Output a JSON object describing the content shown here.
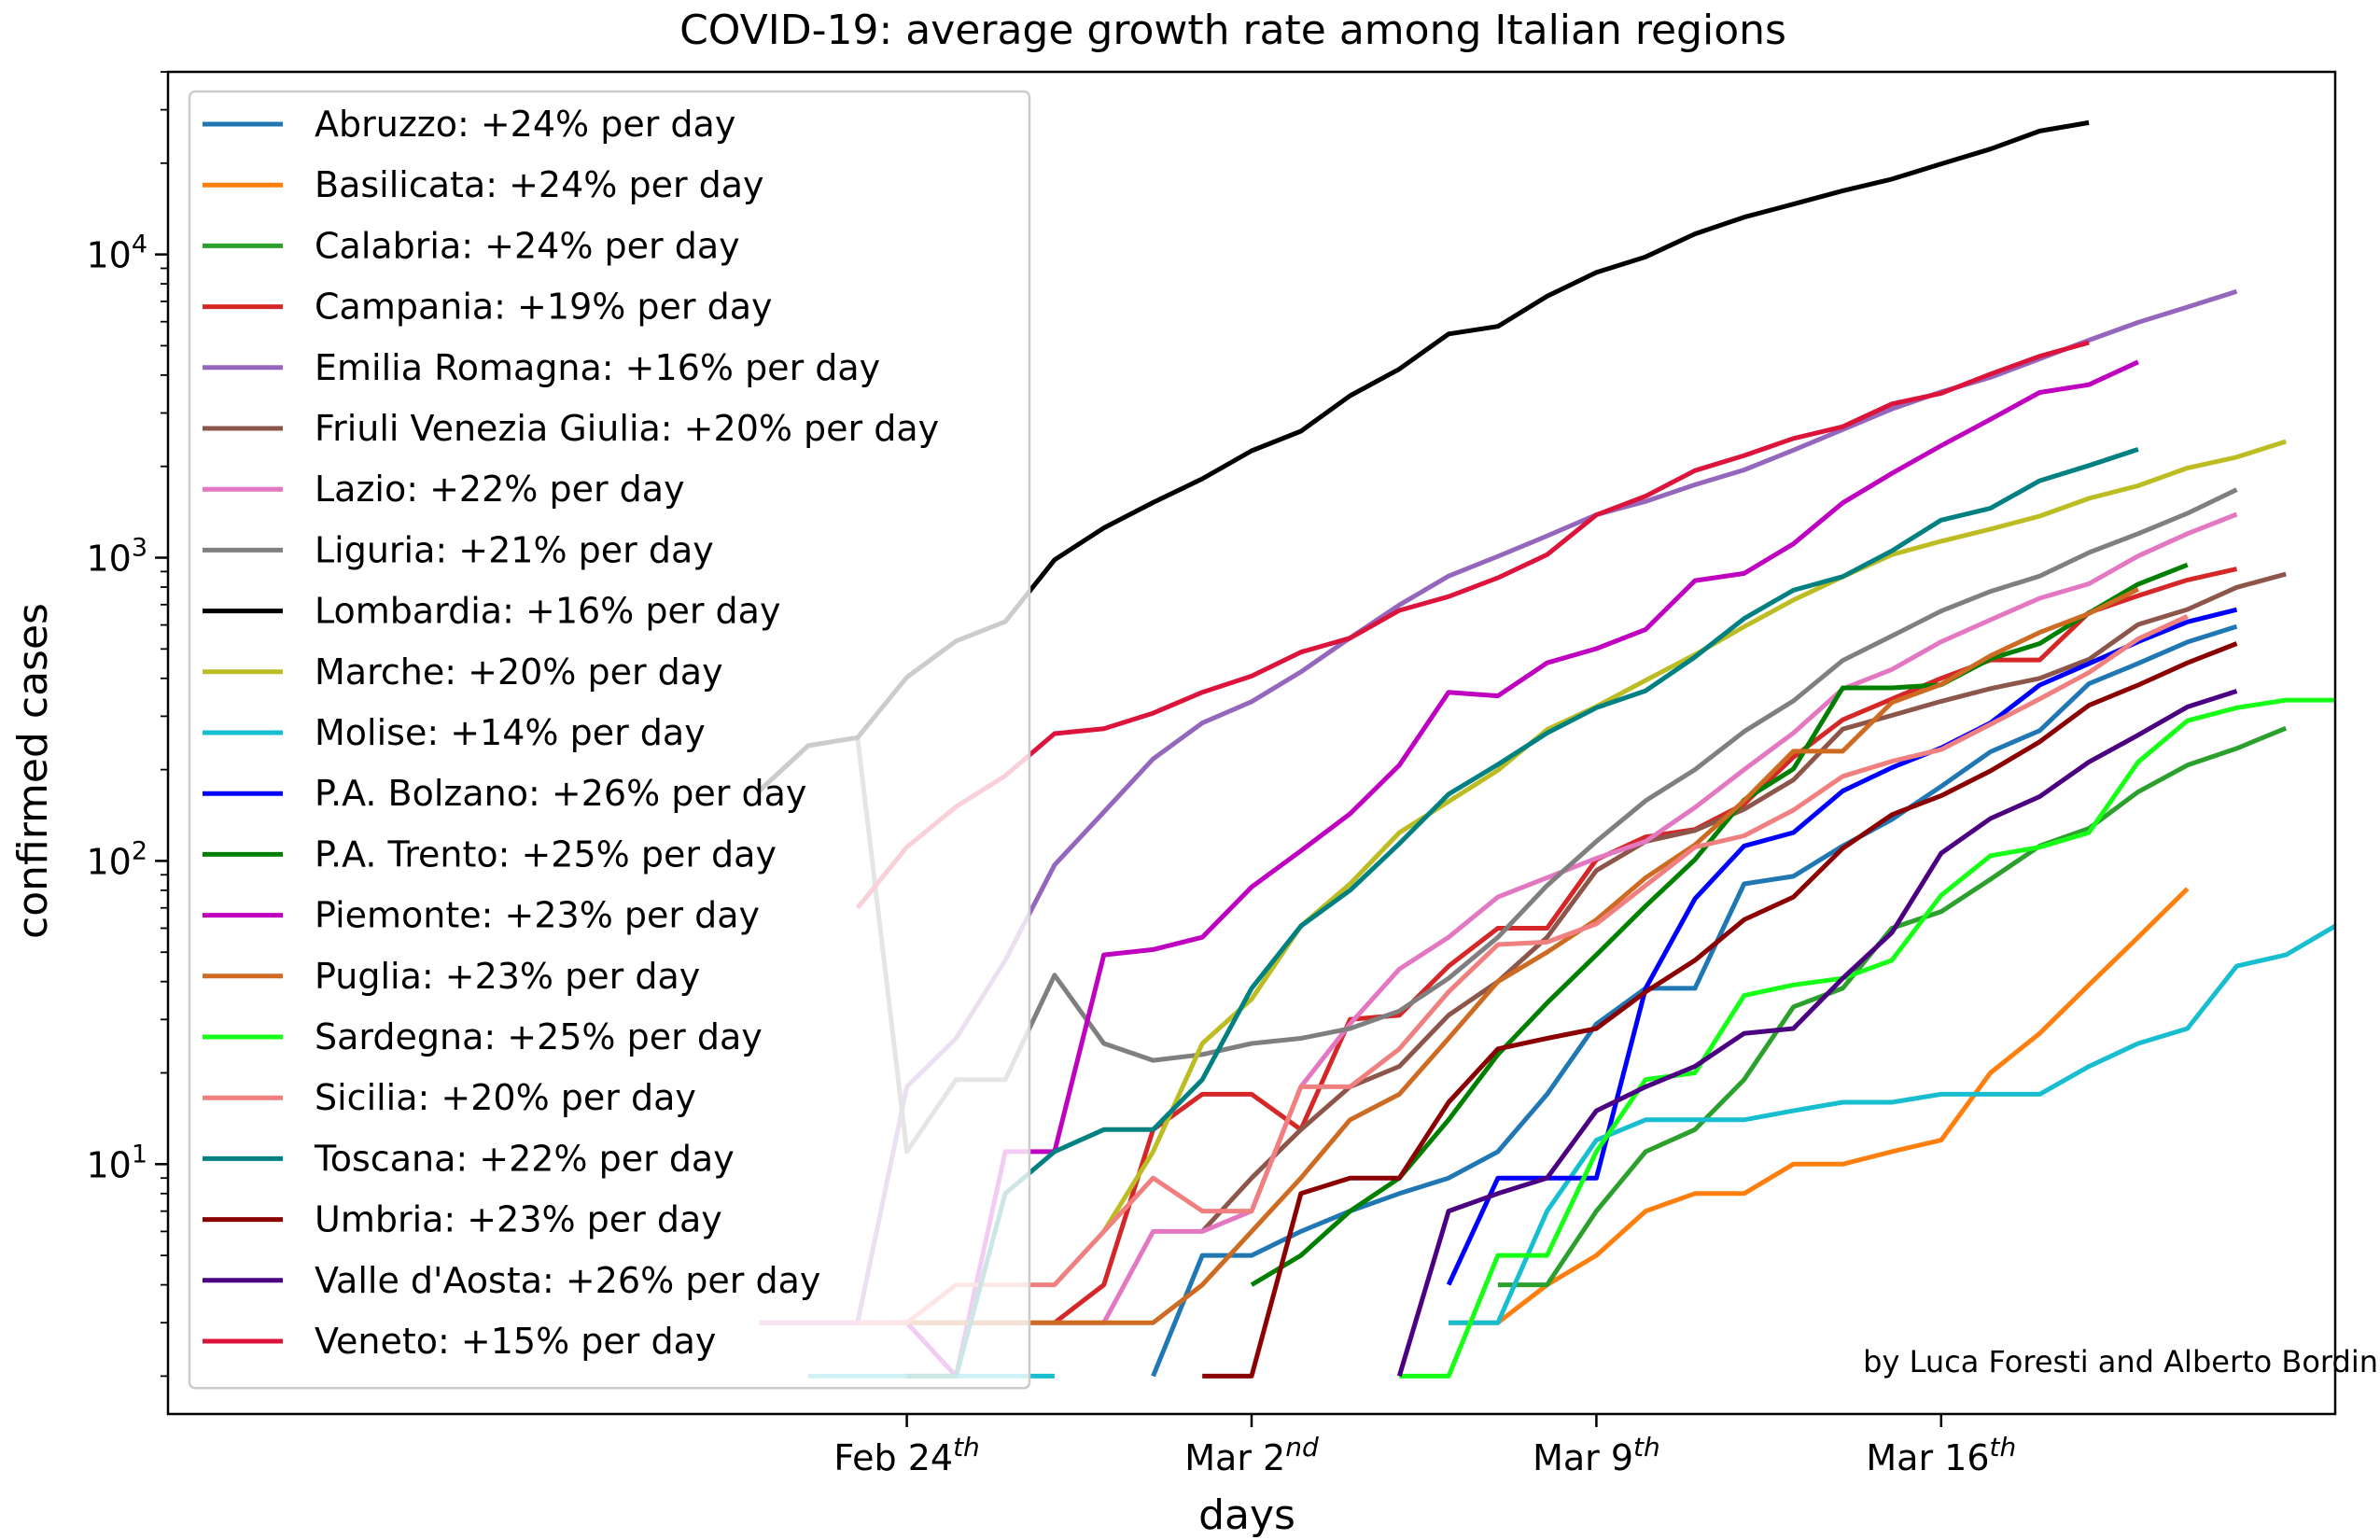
{
  "chart_data": {
    "type": "line",
    "title": "COVID-19: average growth rate among Italian regions",
    "xlabel": "days",
    "ylabel": "confirmed cases",
    "y_scale": "log",
    "ylim": [
      1.5,
      40000
    ],
    "xlim": [
      "2020-02-09",
      "2020-03-24"
    ],
    "x_ticks": [
      {
        "date": "2020-02-24",
        "label": "Feb 24",
        "sup": "th"
      },
      {
        "date": "2020-03-02",
        "label": "Mar 2",
        "sup": "nd"
      },
      {
        "date": "2020-03-09",
        "label": "Mar 9",
        "sup": "th"
      },
      {
        "date": "2020-03-16",
        "label": "Mar 16",
        "sup": "th"
      }
    ],
    "y_ticks": [
      {
        "value": 10,
        "base": "10",
        "exp": "1"
      },
      {
        "value": 100,
        "base": "10",
        "exp": "2"
      },
      {
        "value": 1000,
        "base": "10",
        "exp": "3"
      },
      {
        "value": 10000,
        "base": "10",
        "exp": "4"
      }
    ],
    "legend_position": "top-left",
    "grid": false,
    "annotation": "by Luca Foresti and Alberto Bordin",
    "series": [
      {
        "name": "Abruzzo: +24% per day",
        "color": "#1f77b4",
        "start": "2020-02-29",
        "values": [
          2,
          5,
          5,
          6,
          7,
          8,
          9,
          11,
          17,
          29,
          38,
          38,
          84,
          89,
          112,
          137,
          176,
          229,
          269,
          384,
          448,
          527,
          593
        ]
      },
      {
        "name": "Basilicata: +24% per day",
        "color": "#ff7f0e",
        "start": "2020-03-06",
        "values": [
          3,
          3,
          4,
          5,
          7,
          8,
          8,
          10,
          10,
          11,
          12,
          20,
          27,
          39,
          56,
          81
        ]
      },
      {
        "name": "Calabria: +24% per day",
        "color": "#2ca02c",
        "start": "2020-03-07",
        "values": [
          4,
          4,
          7,
          11,
          13,
          19,
          33,
          38,
          60,
          68,
          87,
          112,
          128,
          169,
          207,
          235,
          274
        ]
      },
      {
        "name": "Campania: +19% per day",
        "color": "#d62728",
        "start": "2020-02-27",
        "values": [
          3,
          4,
          13,
          17,
          17,
          13,
          30,
          31,
          45,
          60,
          60,
          101,
          120,
          127,
          154,
          220,
          292,
          342,
          400,
          460,
          460,
          659,
          749,
          844,
          918
        ]
      },
      {
        "name": "Emilia Romagna: +16% per day",
        "color": "#9467bd",
        "start": "2020-02-21",
        "values": [
          3,
          3,
          3,
          18,
          26,
          47,
          97,
          145,
          217,
          285,
          335,
          420,
          544,
          698,
          870,
          1010,
          1180,
          1386,
          1533,
          1739,
          1947,
          2263,
          2644,
          3093,
          3522,
          3931,
          4525,
          5214,
          5968,
          6705,
          7555
        ]
      },
      {
        "name": "Friuli Venezia Giulia: +20% per day",
        "color": "#8c564b",
        "start": "2020-03-01",
        "values": [
          6,
          9,
          13,
          18,
          21,
          31,
          40,
          56,
          93,
          116,
          126,
          148,
          185,
          272,
          302,
          336,
          370,
          400,
          462,
          602,
          675,
          798,
          883
        ]
      },
      {
        "name": "Lazio: +22% per day",
        "color": "#e377c2",
        "start": "2020-02-21",
        "values": [
          3,
          3,
          3,
          3,
          3,
          3,
          3,
          3,
          6,
          6,
          7,
          18,
          29,
          44,
          56,
          76,
          88,
          102,
          116,
          150,
          200,
          264,
          369,
          428,
          528,
          624,
          735,
          820,
          1013,
          1200,
          1390
        ]
      },
      {
        "name": "Liguria: +21% per day",
        "color": "#7f7f7f",
        "start": "2020-02-21",
        "values": [
          170,
          240,
          255,
          11,
          19,
          19,
          42,
          25,
          22,
          23,
          25,
          26,
          28,
          32,
          41,
          56,
          83,
          116,
          158,
          200,
          267,
          337,
          458,
          552,
          667,
          774,
          870,
          1039,
          1200,
          1400,
          1677
        ]
      },
      {
        "name": "Lombardia: +16% per day",
        "color": "#000000",
        "start": "2020-02-21",
        "values": [
          170,
          240,
          255,
          403,
          531,
          615,
          984,
          1254,
          1520,
          1820,
          2251,
          2612,
          3420,
          4189,
          5469,
          5791,
          7280,
          8725,
          9820,
          11685,
          13272,
          14649,
          16220,
          17713,
          19884,
          22264,
          25515,
          27206
        ]
      },
      {
        "name": "Marche: +20% per day",
        "color": "#bcbd22",
        "start": "2020-02-28",
        "values": [
          6,
          11,
          25,
          35,
          61,
          84,
          124,
          157,
          199,
          271,
          323,
          394,
          479,
          592,
          725,
          865,
          1023,
          1133,
          1242,
          1371,
          1568,
          1727,
          1976,
          2145,
          2417
        ]
      },
      {
        "name": "Molise: +14% per day",
        "color": "#17becf",
        "start": "2020-02-22",
        "values": [
          2,
          2,
          2,
          2,
          2,
          2,
          "gap",
          "gap",
          "gap",
          "gap",
          "gap",
          "gap",
          "gap",
          3,
          3,
          7,
          12,
          14,
          14,
          14,
          15,
          16,
          16,
          17,
          17,
          17,
          21,
          25,
          28,
          45,
          49,
          61,
          66
        ]
      },
      {
        "name": "P.A. Bolzano: +26% per day",
        "color": "#0000ff",
        "start": "2020-03-06",
        "values": [
          4,
          9,
          9,
          9,
          38,
          75,
          112,
          124,
          170,
          203,
          236,
          285,
          380,
          447,
          528,
          614,
          674
        ]
      },
      {
        "name": "P.A. Trento: +25% per day",
        "color": "#008000",
        "start": "2020-03-02",
        "values": [
          4,
          5,
          7,
          9,
          14,
          23,
          34,
          49,
          71,
          101,
          159,
          201,
          372,
          372,
          381,
          464,
          521,
          657,
          818,
          947
        ]
      },
      {
        "name": "Piemonte: +23% per day",
        "color": "#c000c0",
        "start": "2020-02-23",
        "values": [
          3,
          3,
          2,
          11,
          11,
          49,
          51,
          56,
          82,
          108,
          143,
          207,
          360,
          350,
          450,
          501,
          580,
          840,
          887,
          1111,
          1516,
          1897,
          2341,
          2858,
          3506,
          3718,
          4420
        ]
      },
      {
        "name": "Puglia: +23% per day",
        "color": "#cd6b23",
        "start": "2020-02-24",
        "values": [
          3,
          3,
          3,
          3,
          3,
          3,
          4,
          6,
          9,
          14,
          17,
          26,
          40,
          50,
          64,
          88,
          113,
          158,
          230,
          230,
          333,
          382,
          475,
          567,
          654,
          787
        ]
      },
      {
        "name": "Sardegna: +25% per day",
        "color": "#17ff17",
        "start": "2020-03-05",
        "values": [
          2,
          2,
          5,
          5,
          11,
          19,
          20,
          36,
          39,
          41,
          47,
          77,
          104,
          111,
          124,
          212,
          290,
          320,
          339,
          339
        ]
      },
      {
        "name": "Sicilia: +20% per day",
        "color": "#f08080",
        "start": "2020-02-23",
        "values": [
          3,
          3,
          4,
          4,
          4,
          6,
          9,
          7,
          7,
          18,
          18,
          24,
          37,
          53,
          54,
          62,
          83,
          111,
          121,
          147,
          190,
          213,
          233,
          282,
          342,
          418,
          540,
          641
        ]
      },
      {
        "name": "Toscana: +22% per day",
        "color": "#008080",
        "start": "2020-02-24",
        "values": [
          2,
          2,
          8,
          11,
          13,
          13,
          19,
          38,
          61,
          80,
          114,
          166,
          208,
          264,
          320,
          364,
          470,
          630,
          781,
          866,
          1053,
          1330,
          1455,
          1793,
          2013,
          2277
        ]
      },
      {
        "name": "Umbria: +23% per day",
        "color": "#8b0000",
        "start": "2020-03-01",
        "values": [
          2,
          2,
          8,
          9,
          9,
          16,
          24,
          26,
          28,
          37,
          47,
          64,
          76,
          110,
          142,
          164,
          198,
          247,
          326,
          380,
          450,
          521
        ]
      },
      {
        "name": "Valle d'Aosta: +26% per day",
        "color": "#4b0082",
        "start": "2020-03-05",
        "values": [
          2,
          7,
          8,
          9,
          15,
          18,
          21,
          27,
          28,
          41,
          58,
          106,
          138,
          163,
          212,
          260,
          322,
          363
        ]
      },
      {
        "name": "Veneto: +15% per day",
        "color": "#dc143c",
        "start": "2020-02-23",
        "values": [
          70,
          111,
          151,
          191,
          263,
          273,
          307,
          360,
          407,
          488,
          543,
          670,
          744,
          858,
          1023,
          1384,
          1595,
          1937,
          2172,
          2473,
          2704,
          3214,
          3484,
          4031,
          4617,
          5122
        ]
      }
    ]
  }
}
